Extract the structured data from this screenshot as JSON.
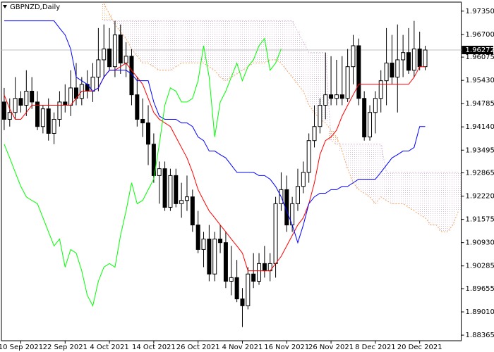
{
  "chart_data": {
    "type": "candlestick",
    "title": "GBPNZD,Daily",
    "categories": [
      null,
      null,
      null,
      "10 Sep 2021",
      null,
      null,
      null,
      null,
      null,
      null,
      null,
      "22 Sep 2021",
      null,
      null,
      null,
      null,
      null,
      null,
      null,
      "4 Oct 2021",
      null,
      null,
      null,
      null,
      null,
      null,
      null,
      "14 Oct 2021",
      null,
      null,
      null,
      null,
      null,
      null,
      null,
      "26 Oct 2021",
      null,
      null,
      null,
      null,
      null,
      null,
      null,
      "4 Nov 2021",
      null,
      null,
      null,
      null,
      null,
      null,
      null,
      "16 Nov 2021",
      null,
      null,
      null,
      null,
      null,
      null,
      null,
      "26 Nov 2021",
      null,
      null,
      null,
      null,
      null,
      null,
      null,
      "8 Dec 2021",
      null,
      null,
      null,
      null,
      null,
      null,
      null,
      "20 Dec 2021",
      null,
      null,
      null,
      null,
      null,
      null,
      null
    ],
    "open": [
      1.9483,
      1.9435,
      1.9454,
      1.9493,
      1.9474,
      1.9513,
      1.9483,
      1.9415,
      1.9464,
      1.9396,
      1.9435,
      1.9483,
      1.9474,
      1.9522,
      1.9493,
      1.9532,
      1.9513,
      1.9552,
      1.96,
      1.963,
      1.9581,
      1.9669,
      1.9591,
      1.961,
      1.9503,
      1.9435,
      1.9425,
      1.9366,
      1.9279,
      1.9298,
      1.9191,
      1.9279,
      1.9201,
      1.921,
      1.922,
      1.9142,
      1.9074,
      1.9103,
      1.9006,
      1.9103,
      1.9093,
      1.8986,
      1.8996,
      1.8937,
      1.8918,
      1.9006,
      1.8986,
      1.9035,
      1.9015,
      1.9035,
      1.9201,
      1.924,
      1.9142,
      1.9201,
      1.9249,
      1.9288,
      1.9376,
      1.9415,
      1.9474,
      1.9503,
      1.9493,
      1.9503,
      1.9493,
      1.9581,
      1.9639,
      1.9493,
      1.9386,
      1.9454,
      1.9493,
      1.9542,
      1.9591,
      1.9552,
      1.96,
      1.962,
      1.9571,
      1.963,
      1.9581,
      null,
      null,
      null,
      null,
      null,
      null
    ],
    "high": [
      1.9522,
      1.9493,
      1.9552,
      1.9513,
      1.9571,
      1.9552,
      1.9513,
      1.9474,
      1.9493,
      1.9454,
      1.9513,
      1.9532,
      1.9571,
      1.9591,
      1.9552,
      1.9571,
      1.9591,
      1.9688,
      1.9698,
      1.9688,
      1.9708,
      1.9698,
      1.9649,
      1.963,
      1.9552,
      1.9493,
      1.9474,
      1.9396,
      1.9318,
      1.9318,
      1.9298,
      1.9298,
      1.9259,
      1.9279,
      1.924,
      1.9181,
      1.9123,
      1.9142,
      1.9123,
      1.9142,
      1.9123,
      1.9084,
      1.9045,
      1.8967,
      1.9025,
      1.9064,
      1.9064,
      1.9084,
      1.9064,
      1.922,
      1.9288,
      1.9279,
      1.922,
      1.9298,
      1.9318,
      1.9396,
      1.9474,
      1.9493,
      1.962,
      1.961,
      1.96,
      1.961,
      1.963,
      1.9669,
      1.9659,
      1.9513,
      1.9474,
      1.9513,
      1.9571,
      1.9688,
      1.9669,
      1.9698,
      1.9669,
      1.9688,
      1.9708,
      1.9678,
      1.9639,
      null,
      null,
      null,
      null,
      null,
      null
    ],
    "low": [
      1.9405,
      1.9415,
      1.9435,
      1.9454,
      1.9444,
      1.9464,
      1.9405,
      1.9396,
      1.9376,
      1.9366,
      1.9415,
      1.9454,
      1.9444,
      1.9474,
      1.9474,
      1.9493,
      1.9483,
      1.9513,
      1.9552,
      1.9571,
      1.9552,
      1.9561,
      1.9552,
      1.9474,
      1.9415,
      1.9386,
      1.9308,
      1.9259,
      1.9201,
      1.9181,
      1.9181,
      1.9191,
      1.9162,
      1.9181,
      1.9123,
      1.9064,
      1.9025,
      1.8986,
      1.8986,
      1.9064,
      1.8967,
      1.8947,
      1.8928,
      1.8859,
      1.8908,
      1.8967,
      1.8976,
      1.8996,
      1.8986,
      1.8996,
      1.9181,
      1.9123,
      1.9123,
      1.9181,
      1.923,
      1.9259,
      1.9357,
      1.9396,
      1.9435,
      1.9474,
      1.9474,
      1.9474,
      1.9483,
      1.9532,
      1.9474,
      1.9376,
      1.9376,
      1.9396,
      1.9454,
      1.9474,
      1.9532,
      1.9454,
      1.9552,
      1.9561,
      1.9552,
      1.9571,
      1.9571,
      null,
      null,
      null,
      null,
      null,
      null
    ],
    "close": [
      1.9435,
      1.9454,
      1.9493,
      1.9474,
      1.9513,
      1.9483,
      1.9415,
      1.9464,
      1.9396,
      1.9435,
      1.9483,
      1.9474,
      1.9522,
      1.9493,
      1.9532,
      1.9513,
      1.9552,
      1.96,
      1.963,
      1.9581,
      1.9669,
      1.9591,
      1.961,
      1.9503,
      1.9435,
      1.9425,
      1.9366,
      1.9279,
      1.9298,
      1.9191,
      1.9279,
      1.9201,
      1.921,
      1.922,
      1.9142,
      1.9074,
      1.9103,
      1.9006,
      1.9103,
      1.9093,
      1.8986,
      1.8996,
      1.8937,
      1.8918,
      1.9006,
      1.8986,
      1.9035,
      1.9015,
      1.9035,
      1.9201,
      1.924,
      1.9142,
      1.9201,
      1.9249,
      1.9288,
      1.9376,
      1.9415,
      1.9474,
      1.9503,
      1.9493,
      1.9503,
      1.9493,
      1.9581,
      1.9639,
      1.9493,
      1.9386,
      1.9454,
      1.9493,
      1.9542,
      1.9591,
      1.9552,
      1.96,
      1.962,
      1.9571,
      1.963,
      1.9581,
      1.96272,
      null,
      null,
      null,
      null,
      null,
      null
    ],
    "bull_color": "#ffffff",
    "bear_color": "#000000",
    "lines": [
      {
        "color": "#ff0000",
        "values": [
          1.9503,
          1.9464,
          1.9435,
          1.9435,
          1.9454,
          1.9474,
          1.9474,
          1.9474,
          1.9474,
          1.9474,
          1.9474,
          1.9474,
          1.9474,
          1.9493,
          1.9513,
          1.9513,
          1.9513,
          1.9522,
          1.9552,
          1.9571,
          1.9571,
          1.9581,
          1.9591,
          1.9571,
          1.9552,
          1.9532,
          1.9493,
          1.9454,
          1.9435,
          1.9425,
          1.9415,
          1.9386,
          1.9357,
          1.9328,
          1.9288,
          1.924,
          1.921,
          1.9181,
          1.9162,
          1.9142,
          1.9123,
          1.9103,
          1.9084,
          1.9064,
          1.9015,
          1.9015,
          1.9015,
          1.9015,
          1.9015,
          1.9035,
          1.9055,
          1.9084,
          1.9113,
          1.9142,
          1.9162,
          1.9201,
          1.9259,
          1.9337,
          1.9376,
          1.9386,
          1.9405,
          1.9444,
          1.9474,
          1.9503,
          1.9532,
          1.9532,
          1.9532,
          1.9532,
          1.9532,
          1.9532,
          1.9532,
          1.9532,
          1.9532,
          1.9532,
          1.9552,
          1.9581,
          1.9581,
          null,
          null,
          null,
          null,
          null,
          null
        ]
      },
      {
        "color": "#0000ff",
        "values": [
          1.9708,
          1.9708,
          1.9708,
          1.9708,
          1.9708,
          1.9708,
          1.9708,
          1.9708,
          1.9708,
          1.9708,
          1.9688,
          1.9669,
          1.963,
          1.9552,
          1.9542,
          1.9532,
          1.9513,
          1.9522,
          1.9552,
          1.9571,
          1.9571,
          1.9571,
          1.9571,
          1.9561,
          1.9542,
          1.9542,
          1.9542,
          1.9483,
          1.9444,
          1.9435,
          1.9435,
          1.9435,
          1.9425,
          1.9425,
          1.9415,
          1.9386,
          1.9376,
          1.9347,
          1.9347,
          1.9337,
          1.9328,
          1.9308,
          1.9288,
          1.9288,
          1.9288,
          1.9288,
          1.9279,
          1.9279,
          1.9269,
          1.9249,
          1.922,
          1.9181,
          1.9142,
          1.9093,
          1.9142,
          1.9201,
          1.922,
          1.923,
          1.923,
          1.924,
          1.924,
          1.9249,
          1.9249,
          1.9259,
          1.9269,
          1.9269,
          1.9269,
          1.9269,
          1.9288,
          1.9308,
          1.9328,
          1.9337,
          1.9347,
          1.9347,
          1.9357,
          1.9415,
          1.9415,
          null,
          null,
          null,
          null,
          null,
          null
        ]
      },
      {
        "color": "#00ff00",
        "values": [
          1.9366,
          1.9328,
          1.9288,
          1.9249,
          1.922,
          1.921,
          1.9201,
          1.9162,
          1.9123,
          1.9084,
          1.9103,
          1.9025,
          1.9074,
          1.9064,
          1.9015,
          1.8947,
          1.8918,
          1.8986,
          1.9025,
          1.9035,
          1.9025,
          1.9113,
          1.9181,
          1.9259,
          1.9201,
          1.921,
          1.924,
          1.9269,
          1.9366,
          1.9474,
          1.9522,
          1.9513,
          1.9483,
          1.9483,
          1.9493,
          1.9542,
          1.9639,
          1.9552,
          1.9386,
          1.9483,
          1.9513,
          1.9552,
          1.9591,
          1.9542,
          1.9581,
          1.96,
          1.9639,
          1.9659,
          1.9571,
          1.9591,
          1.963,
          null,
          null,
          null,
          null,
          null,
          null,
          null,
          null,
          null,
          null,
          null,
          null,
          null,
          null,
          null,
          null,
          null,
          null,
          null,
          null,
          null,
          null,
          null,
          null,
          null,
          null,
          null,
          null,
          null,
          null,
          null
        ]
      }
    ],
    "cloud": [
      {
        "color": "#f4a460",
        "values": [
          null,
          null,
          null,
          null,
          null,
          null,
          null,
          null,
          null,
          null,
          null,
          null,
          null,
          null,
          null,
          null,
          null,
          null,
          1.9756,
          1.9727,
          1.9698,
          1.9678,
          1.9659,
          1.963,
          1.961,
          1.9591,
          1.9591,
          1.9581,
          1.9571,
          1.9571,
          1.9571,
          1.9581,
          1.9591,
          1.9591,
          1.9591,
          1.9591,
          1.9591,
          1.9581,
          1.9571,
          1.9552,
          1.9542,
          1.9552,
          1.9561,
          1.9571,
          1.9581,
          1.9591,
          1.9591,
          1.9591,
          1.96,
          1.96,
          1.9591,
          1.9571,
          1.9552,
          1.9532,
          1.9513,
          1.9474,
          1.9454,
          1.9435,
          1.9425,
          1.9405,
          1.9386,
          1.9347,
          1.9298,
          1.9259,
          1.924,
          1.923,
          1.922,
          1.9201,
          1.922,
          1.921,
          1.9201,
          1.9201,
          1.9201,
          1.9191,
          1.9181,
          1.9171,
          1.9162,
          1.9142,
          1.9142,
          1.9123,
          1.9123,
          1.9142,
          1.9181
        ]
      },
      {
        "color": "#d8bfd8",
        "values": [
          null,
          null,
          null,
          null,
          null,
          null,
          null,
          null,
          null,
          null,
          null,
          null,
          null,
          null,
          null,
          null,
          null,
          null,
          1.9708,
          1.9708,
          1.9708,
          1.9708,
          1.9708,
          1.9708,
          1.9708,
          1.9708,
          1.9708,
          1.9708,
          1.9708,
          1.9708,
          1.9708,
          1.9708,
          1.9708,
          1.9708,
          1.9708,
          1.9708,
          1.9708,
          1.9708,
          1.9708,
          1.9708,
          1.9708,
          1.9708,
          1.9708,
          1.9708,
          1.9708,
          1.9708,
          1.9708,
          1.9708,
          1.9708,
          1.9708,
          1.9708,
          1.9708,
          1.9708,
          1.9678,
          1.9649,
          1.962,
          1.962,
          1.962,
          1.962,
          1.9376,
          1.9366,
          1.9366,
          1.9366,
          1.9366,
          1.9366,
          1.9366,
          1.9366,
          1.9366,
          1.9366,
          1.9288,
          1.9288,
          1.9288,
          1.9288,
          1.9288,
          1.9288,
          1.9288,
          1.9288,
          1.9288,
          1.9288,
          1.9288,
          1.9288,
          1.9288,
          1.9288
        ]
      }
    ],
    "current_price": 1.96272,
    "ylim": [
      1.8821,
      1.976
    ],
    "yticks": [
      {
        "value": 1.9735,
        "label": "1.97350"
      },
      {
        "value": 1.967,
        "label": "1.96700"
      },
      1.96075,
      {
        "value": 1.9543,
        "label": "1.95430"
      },
      1.94785,
      {
        "value": 1.9414,
        "label": "1.94140"
      },
      1.93495,
      1.92865,
      {
        "value": 1.9222,
        "label": "1.92220"
      },
      1.91575,
      {
        "value": 1.9093,
        "label": "1.90930"
      },
      1.90285,
      1.89655,
      {
        "value": 1.8901,
        "label": "1.89010"
      },
      1.88365
    ],
    "grid": false
  }
}
